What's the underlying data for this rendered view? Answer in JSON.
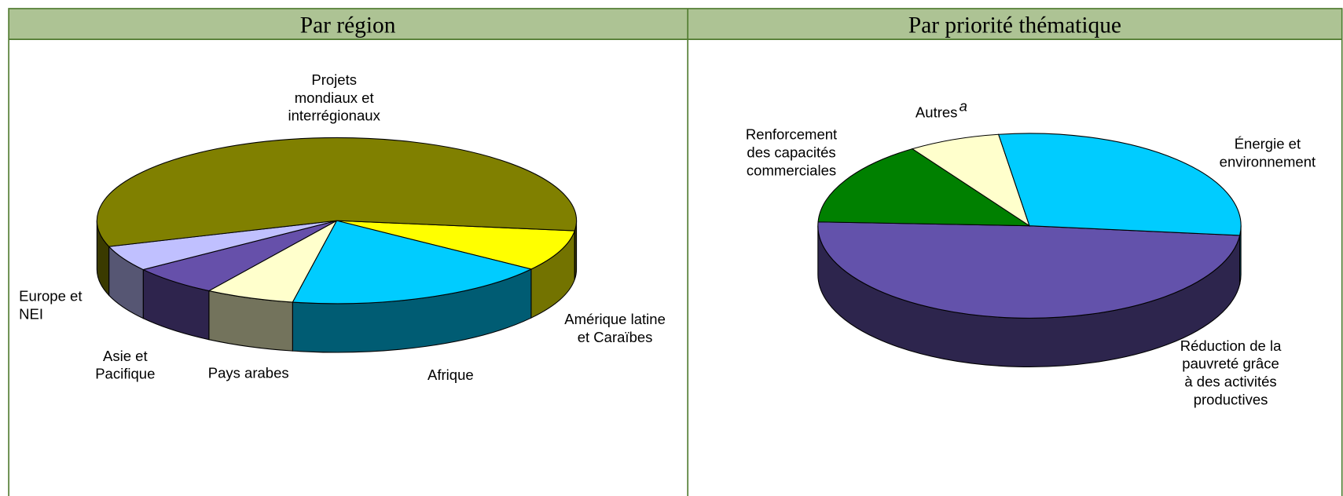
{
  "chart_data": [
    {
      "type": "pie",
      "title": "Par région",
      "categories": [
        "Amérique latine\net Caraïbes",
        "Afrique",
        "Pays arabes",
        "Asie et\nPacifique",
        "Europe et\nNEI",
        "Projets\nmondiaux et\ninterrégionaux"
      ],
      "values": [
        8,
        18,
        6,
        6,
        5,
        57
      ],
      "colors": [
        "#ffff00",
        "#00ccff",
        "#ffffcc",
        "#6650aa",
        "#c0c0ff",
        "#808000"
      ]
    },
    {
      "type": "pie",
      "title": "Par priorité thématique",
      "categories": [
        "Réduction de la\npauvreté grâce\nà des activités\nproductives",
        "Renforcement\ndes capacités\ncommerciales",
        "Autres",
        "Énergie et\nenvironnement"
      ],
      "values": [
        49,
        15,
        7,
        29
      ],
      "colors": [
        "#6352ab",
        "#008000",
        "#ffffcc",
        "#00ccff"
      ],
      "notes": {
        "2": "a"
      }
    }
  ]
}
